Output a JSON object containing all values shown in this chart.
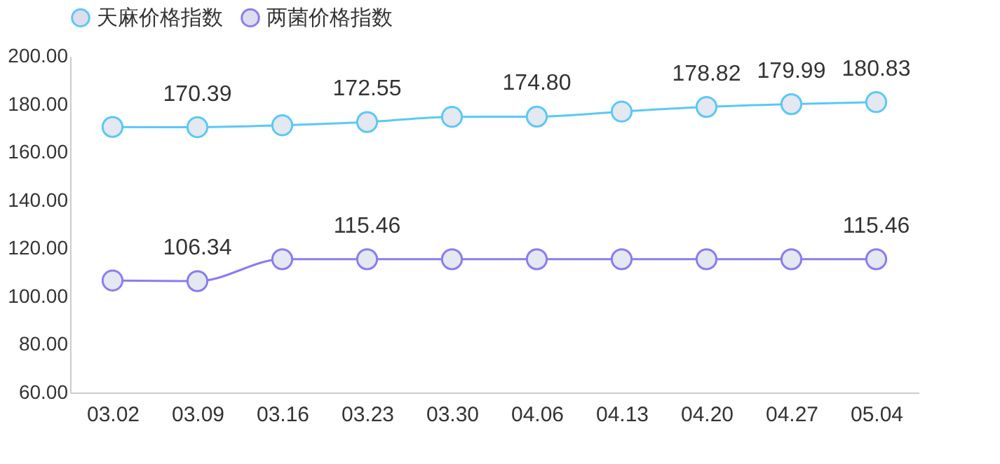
{
  "chart_data": {
    "type": "line",
    "categories": [
      "03.02",
      "03.09",
      "03.16",
      "03.23",
      "03.30",
      "04.06",
      "04.13",
      "04.20",
      "04.27",
      "05.04"
    ],
    "series": [
      {
        "name": "天麻价格指数",
        "color": "#5bc8f5",
        "values": [
          170.5,
          170.39,
          171.2,
          172.55,
          174.7,
          174.8,
          176.9,
          178.82,
          179.99,
          180.83
        ],
        "value_labels": [
          null,
          "170.39",
          null,
          "172.55",
          null,
          "174.80",
          null,
          "178.82",
          "179.99",
          "180.83"
        ]
      },
      {
        "name": "两菌价格指数",
        "color": "#8b7cf0",
        "values": [
          106.6,
          106.34,
          115.46,
          115.46,
          115.46,
          115.46,
          115.46,
          115.46,
          115.46,
          115.46
        ],
        "value_labels": [
          null,
          "106.34",
          null,
          "115.46",
          null,
          null,
          null,
          null,
          null,
          "115.46"
        ]
      }
    ],
    "ylim": [
      60,
      200
    ],
    "yticks": [
      {
        "value": 60,
        "label": "60.00"
      },
      {
        "value": 80,
        "label": "80.00"
      },
      {
        "value": 100,
        "label": "100.00"
      },
      {
        "value": 120,
        "label": "120.00"
      },
      {
        "value": 140,
        "label": "140.00"
      },
      {
        "value": 160,
        "label": "160.00"
      },
      {
        "value": 180,
        "label": "180.00"
      },
      {
        "value": 200,
        "label": "200.00"
      }
    ],
    "grid": false,
    "legend": "top",
    "marker": "circle",
    "line_style": "solid"
  }
}
